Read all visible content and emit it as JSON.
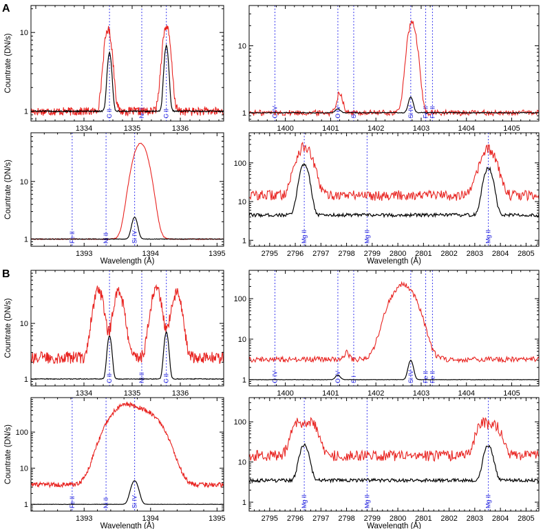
{
  "figure": {
    "panel_letters": [
      "A",
      "B"
    ]
  },
  "chart_data": [
    {
      "id": "A1",
      "type": "line",
      "yscale": "log",
      "xlim": [
        1332.9,
        1336.9
      ],
      "ylim": [
        0.75,
        22
      ],
      "xticks": [
        1334,
        1335,
        1336
      ],
      "yticks": [
        1,
        10
      ],
      "ylabel": "Countrate (DN/s)",
      "xlabel": "",
      "lines": [
        {
          "label": "C II",
          "x": 1334.53
        },
        {
          "label": "Ni II",
          "x": 1335.2
        },
        {
          "label": "C II",
          "x": 1335.71
        }
      ],
      "red_profile": {
        "baseline": 1.0,
        "noise": 0.25,
        "peaks": [
          [
            1334.5,
            10,
            0.07
          ],
          [
            1335.71,
            11,
            0.07
          ]
        ]
      },
      "black_profile": {
        "baseline": 1.0,
        "noise": 0.04,
        "peaks": [
          [
            1334.53,
            4.5,
            0.04
          ],
          [
            1335.71,
            5.8,
            0.04
          ]
        ]
      }
    },
    {
      "id": "A2",
      "type": "line",
      "yscale": "log",
      "xlim": [
        1399.2,
        1405.6
      ],
      "ylim": [
        0.75,
        40
      ],
      "xticks": [
        1400,
        1401,
        1402,
        1403,
        1404,
        1405
      ],
      "yticks": [
        1,
        10
      ],
      "ylabel": "",
      "xlabel": "",
      "lines": [
        {
          "label": "O IV",
          "x": 1399.77
        },
        {
          "label": "O IV",
          "x": 1401.16
        },
        {
          "label": "S I",
          "x": 1401.51
        },
        {
          "label": "Si IV",
          "x": 1402.77
        },
        {
          "label": "Fe II",
          "x": 1403.1
        },
        {
          "label": "Fe II",
          "x": 1403.25
        }
      ],
      "red_profile": {
        "baseline": 1.0,
        "noise": 0.2,
        "peaks": [
          [
            1402.8,
            21,
            0.09
          ],
          [
            1401.2,
            1.0,
            0.06
          ]
        ]
      },
      "black_profile": {
        "baseline": 1.0,
        "noise": 0.03,
        "peaks": [
          [
            1402.77,
            0.7,
            0.05
          ],
          [
            1401.16,
            0.15,
            0.05
          ]
        ]
      }
    },
    {
      "id": "A3",
      "type": "line",
      "yscale": "log",
      "xlim": [
        1392.2,
        1395.1
      ],
      "ylim": [
        0.75,
        70
      ],
      "xticks": [
        1393,
        1394,
        1395
      ],
      "yticks": [
        1,
        10
      ],
      "ylabel": "Countrate (DN/s)",
      "xlabel": "Wavelength (Å)",
      "lines": [
        {
          "label": "Fe II",
          "x": 1392.82
        },
        {
          "label": "Ni II",
          "x": 1393.33
        },
        {
          "label": "Si IV",
          "x": 1393.76
        }
      ],
      "red_profile": {
        "baseline": 1.0,
        "noise": 0.04,
        "peaks": [
          [
            1393.85,
            45,
            0.1
          ]
        ]
      },
      "black_profile": {
        "baseline": 1.0,
        "noise": 0.02,
        "peaks": [
          [
            1393.76,
            1.4,
            0.04
          ]
        ]
      }
    },
    {
      "id": "A4",
      "type": "line",
      "yscale": "log",
      "xlim": [
        2794.2,
        2805.5
      ],
      "ylim": [
        0.7,
        600
      ],
      "xticks": [
        2795,
        2796,
        2797,
        2798,
        2799,
        2800,
        2801,
        2802,
        2803,
        2804,
        2805
      ],
      "yticks": [
        1,
        10,
        100
      ],
      "ylabel": "",
      "xlabel": "Wavelength (Å)",
      "lines": [
        {
          "label": "Mg II",
          "x": 2796.35
        },
        {
          "label": "Mg II",
          "x": 2798.8
        },
        {
          "label": "Mg II",
          "x": 2803.53
        }
      ],
      "red_profile": {
        "baseline": 15,
        "noise": 0.6,
        "peaks": [
          [
            2796.35,
            250,
            0.25
          ],
          [
            2803.53,
            210,
            0.25
          ]
        ]
      },
      "black_profile": {
        "baseline": 4.5,
        "noise": 0.2,
        "peaks": [
          [
            2796.35,
            90,
            0.15
          ],
          [
            2803.53,
            70,
            0.15
          ]
        ]
      }
    },
    {
      "id": "B1",
      "type": "line",
      "yscale": "log",
      "xlim": [
        1332.9,
        1336.9
      ],
      "ylim": [
        0.75,
        90
      ],
      "xticks": [
        1334,
        1335,
        1336
      ],
      "yticks": [
        1,
        10
      ],
      "ylabel": "Countrate (DN/s)",
      "xlabel": "",
      "lines": [
        {
          "label": "C II",
          "x": 1334.53
        },
        {
          "label": "Ni II",
          "x": 1335.2
        },
        {
          "label": "C II",
          "x": 1335.71
        }
      ],
      "red_profile": {
        "baseline": 2.5,
        "noise": 0.5,
        "peaks": [
          [
            1334.3,
            38,
            0.09
          ],
          [
            1334.72,
            34,
            0.09
          ],
          [
            1335.5,
            40,
            0.09
          ],
          [
            1335.92,
            33,
            0.09
          ]
        ]
      },
      "black_profile": {
        "baseline": 1.0,
        "noise": 0.03,
        "peaks": [
          [
            1334.53,
            5,
            0.04
          ],
          [
            1335.71,
            6,
            0.04
          ]
        ]
      }
    },
    {
      "id": "B2",
      "type": "line",
      "yscale": "log",
      "xlim": [
        1399.2,
        1405.6
      ],
      "ylim": [
        0.7,
        500
      ],
      "xticks": [
        1400,
        1401,
        1402,
        1403,
        1404,
        1405
      ],
      "yticks": [
        1,
        10,
        100
      ],
      "ylabel": "",
      "xlabel": "",
      "lines": [
        {
          "label": "O IV",
          "x": 1399.77
        },
        {
          "label": "O IV",
          "x": 1401.16
        },
        {
          "label": "S I",
          "x": 1401.51
        },
        {
          "label": "Si IV",
          "x": 1402.77
        },
        {
          "label": "Fe II",
          "x": 1403.1
        },
        {
          "label": "Fe II",
          "x": 1403.25
        }
      ],
      "red_profile": {
        "baseline": 3.2,
        "noise": 0.3,
        "peaks": [
          [
            1402.6,
            220,
            0.22
          ],
          [
            1401.35,
            1.5,
            0.05
          ]
        ]
      },
      "black_profile": {
        "baseline": 1.0,
        "noise": 0.02,
        "peaks": [
          [
            1402.77,
            2,
            0.05
          ],
          [
            1401.16,
            0.3,
            0.05
          ]
        ]
      }
    },
    {
      "id": "B3",
      "type": "line",
      "yscale": "log",
      "xlim": [
        1392.2,
        1395.1
      ],
      "ylim": [
        0.65,
        900
      ],
      "xticks": [
        1393,
        1394,
        1395
      ],
      "yticks": [
        1,
        10,
        100
      ],
      "ylabel": "Countrate (DN/s)",
      "xlabel": "Wavelength (Å)",
      "lines": [
        {
          "label": "Fe II",
          "x": 1392.82
        },
        {
          "label": "Ni II",
          "x": 1393.33
        },
        {
          "label": "Si IV",
          "x": 1393.76
        }
      ],
      "red_profile": {
        "baseline": 3.5,
        "noise": 0.3,
        "peaks": [
          [
            1393.6,
            520,
            0.18
          ],
          [
            1393.95,
            300,
            0.18
          ]
        ]
      },
      "black_profile": {
        "baseline": 1.0,
        "noise": 0.02,
        "peaks": [
          [
            1393.76,
            3.5,
            0.05
          ]
        ]
      }
    },
    {
      "id": "B4",
      "type": "line",
      "yscale": "log",
      "xlim": [
        2794.2,
        2805.5
      ],
      "ylim": [
        0.6,
        400
      ],
      "xticks": [
        2795,
        2796,
        2797,
        2798,
        2799,
        2800,
        2801,
        2802,
        2803,
        2804,
        2805
      ],
      "yticks": [
        1,
        10,
        100
      ],
      "ylabel": "",
      "xlabel": "Wavelength (Å)",
      "lines": [
        {
          "label": "Mg II",
          "x": 2796.35
        },
        {
          "label": "Mg II",
          "x": 2798.8
        },
        {
          "label": "Mg II",
          "x": 2803.53
        }
      ],
      "red_profile": {
        "baseline": 15,
        "noise": 0.6,
        "peaks": [
          [
            2796.1,
            90,
            0.2
          ],
          [
            2796.65,
            80,
            0.2
          ],
          [
            2803.3,
            85,
            0.2
          ],
          [
            2803.8,
            70,
            0.2
          ]
        ]
      },
      "black_profile": {
        "baseline": 3.5,
        "noise": 0.2,
        "peaks": [
          [
            2796.35,
            24,
            0.15
          ],
          [
            2803.53,
            22,
            0.15
          ]
        ]
      }
    }
  ]
}
